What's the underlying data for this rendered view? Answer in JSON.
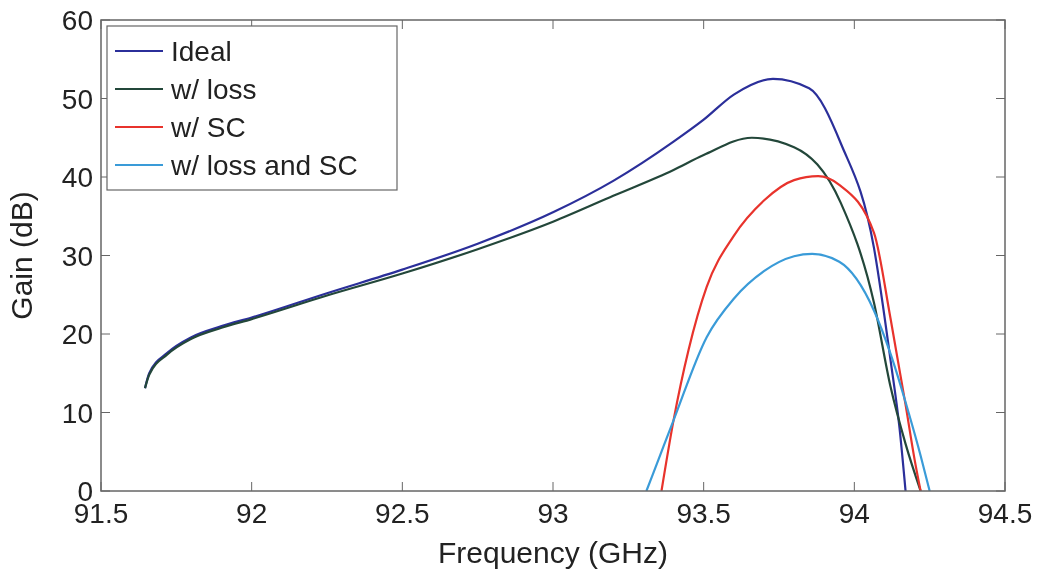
{
  "chart_data": {
    "type": "line",
    "xlabel": "Frequency (GHz)",
    "ylabel": "Gain (dB)",
    "xlim": [
      91.5,
      94.5
    ],
    "ylim": [
      0,
      60
    ],
    "xticks": [
      91.5,
      92,
      92.5,
      93,
      93.5,
      94,
      94.5
    ],
    "yticks": [
      0,
      10,
      20,
      30,
      40,
      50,
      60
    ],
    "grid": false,
    "legend": "top left",
    "line_style": "solid",
    "series": [
      {
        "name": "Ideal",
        "color": "#2b2f9a",
        "x": [
          91.646,
          91.66,
          91.72,
          91.8,
          91.9,
          92.0,
          92.25,
          92.5,
          92.75,
          93.0,
          93.2,
          93.4,
          93.5,
          93.6,
          93.73,
          93.85,
          93.955,
          94.065,
          94.12,
          94.15,
          94.17
        ],
        "values": [
          13.1,
          15,
          17.6,
          19.6,
          21,
          22.1,
          25.2,
          28.2,
          31.5,
          35.5,
          39.5,
          44.5,
          47.3,
          50.5,
          52.5,
          51.3,
          44.3,
          31,
          16.7,
          8,
          0
        ]
      },
      {
        "name": "w/ loss",
        "color": "#23473a",
        "x": [
          91.646,
          91.66,
          91.72,
          91.8,
          91.9,
          92.0,
          92.25,
          92.5,
          92.75,
          93.0,
          93.2,
          93.4,
          93.5,
          93.66,
          93.8,
          93.955,
          94.065,
          94.12,
          94.17,
          94.22
        ],
        "values": [
          13.1,
          14.8,
          17.4,
          19.4,
          20.8,
          21.9,
          24.9,
          27.7,
          30.8,
          34.3,
          37.6,
          40.9,
          42.8,
          45,
          43.8,
          36.7,
          24,
          13.3,
          6,
          0
        ]
      },
      {
        "name": "w/ SC",
        "color": "#e8332c",
        "x": [
          93.36,
          93.4,
          93.45,
          93.51,
          93.6,
          93.7,
          93.8,
          93.88,
          93.95,
          94.065,
          94.12,
          94.17,
          94.2,
          94.22
        ],
        "values": [
          0,
          9,
          18,
          26,
          32.5,
          37,
          39.6,
          40.1,
          39,
          32.9,
          22,
          11,
          4,
          0
        ]
      },
      {
        "name": "w/ loss and SC",
        "color": "#3a9bd8",
        "x": [
          93.31,
          93.35,
          93.4,
          93.51,
          93.6,
          93.7,
          93.8,
          93.86,
          93.95,
          94.065,
          94.12,
          94.18,
          94.22,
          94.25
        ],
        "values": [
          0,
          4,
          9,
          19.6,
          24.5,
          28,
          29.9,
          30.2,
          29.2,
          23,
          17.5,
          10,
          4.5,
          0
        ]
      }
    ]
  }
}
